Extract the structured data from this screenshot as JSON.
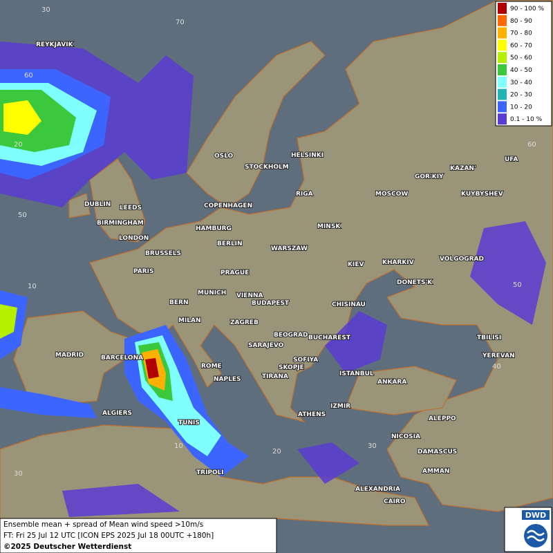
{
  "legend": {
    "items": [
      {
        "label": "90 - 100 %",
        "color": "#b00000"
      },
      {
        "label": "80 - 90",
        "color": "#ff6a00"
      },
      {
        "label": "70 - 80",
        "color": "#ffb000"
      },
      {
        "label": "60 - 70",
        "color": "#ffff00"
      },
      {
        "label": "50 - 60",
        "color": "#b4f000"
      },
      {
        "label": "40 - 50",
        "color": "#3cc83c"
      },
      {
        "label": "30 - 40",
        "color": "#80ffff"
      },
      {
        "label": "20 - 30",
        "color": "#20b4b4"
      },
      {
        "label": "10 - 20",
        "color": "#3c64ff"
      },
      {
        "label": "0.1 - 10 %",
        "color": "#5a3cd2"
      }
    ]
  },
  "cities": [
    "REYKJAVIK",
    "DUBLIN",
    "LEEDS",
    "BIRMINGHAM",
    "LONDON",
    "OSLO",
    "STOCKHOLM",
    "HELSINKI",
    "RIGA",
    "COPENHAGEN",
    "HAMBURG",
    "BERLIN",
    "BRUSSELS",
    "PARIS",
    "MINSK",
    "WARSZAW",
    "MOSCOW",
    "GOR'KIY",
    "KAZAN'",
    "UFA",
    "KUYBYSHEV",
    "KIEV",
    "KHARKIV",
    "VOLGOGRAD",
    "DONETS'K",
    "PRAGUE",
    "MUNICH",
    "VIENNA",
    "BERN",
    "BUDAPEST",
    "CHISINAU",
    "MILAN",
    "ZAGREB",
    "BEOGRAD",
    "BUCHAREST",
    "TBILISI",
    "YEREVAN",
    "MADRID",
    "BARCELONA",
    "SARAJEVO",
    "SOFIYA",
    "ROME",
    "SKOPJE",
    "NAPLES",
    "TIRANA",
    "ISTANBUL",
    "ANKARA",
    "ALGIERS",
    "ATHENS",
    "IZMIR",
    "ALEPPO",
    "TUNIS",
    "NICOSIA",
    "DAMASCUS",
    "TRIPOLI",
    "AMMAN",
    "ALEXANDRIA",
    "CAIRO"
  ],
  "grid_labels": [
    "30",
    "60",
    "20",
    "50",
    "10",
    "30",
    "60",
    "50",
    "40",
    "30",
    "20",
    "10",
    "70"
  ],
  "caption": {
    "line1": "Ensemble mean + spread of Mean wind speed >10m/s",
    "line2": "FT: Fri 25 Jul 12 UTC [ICON EPS 2025 Jul 18 00UTC +180h]",
    "copyright": "©2025 Deutscher Wetterdienst"
  },
  "logo": "DWD"
}
